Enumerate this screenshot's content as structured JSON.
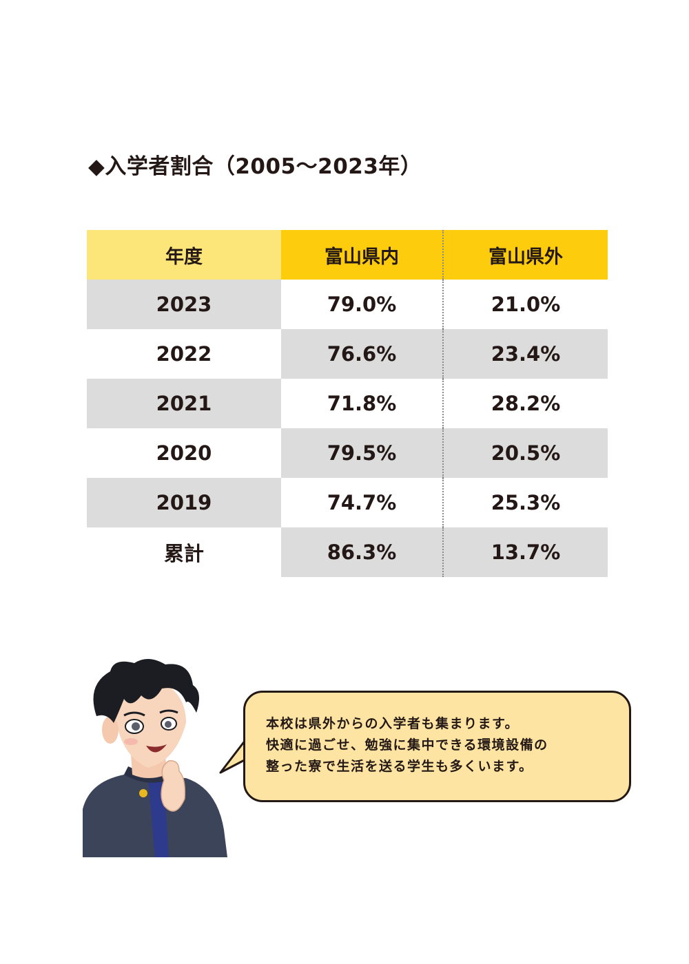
{
  "title": "◆入学者割合（2005～2023年）",
  "table": {
    "headers": [
      "年度",
      "富山県内",
      "富山県外"
    ],
    "rows": [
      [
        "2023",
        "79.0%",
        "21.0%"
      ],
      [
        "2022",
        "76.6%",
        "23.4%"
      ],
      [
        "2021",
        "71.8%",
        "28.2%"
      ],
      [
        "2020",
        "79.5%",
        "20.5%"
      ],
      [
        "2019",
        "74.7%",
        "25.3%"
      ],
      [
        "累計",
        "86.3%",
        "13.7%"
      ]
    ]
  },
  "speech": {
    "lines": [
      "本校は県外からの入学者も集まります。",
      "快適に過ごせ、勉強に集中できる環境設備の",
      "整った寮で生活を送る学生も多くいます。"
    ]
  },
  "colors": {
    "header_light": "#fde679",
    "header_accent": "#fdcc0c",
    "row_gray": "#dcdcdd",
    "bubble_fill": "#fde4a3"
  }
}
